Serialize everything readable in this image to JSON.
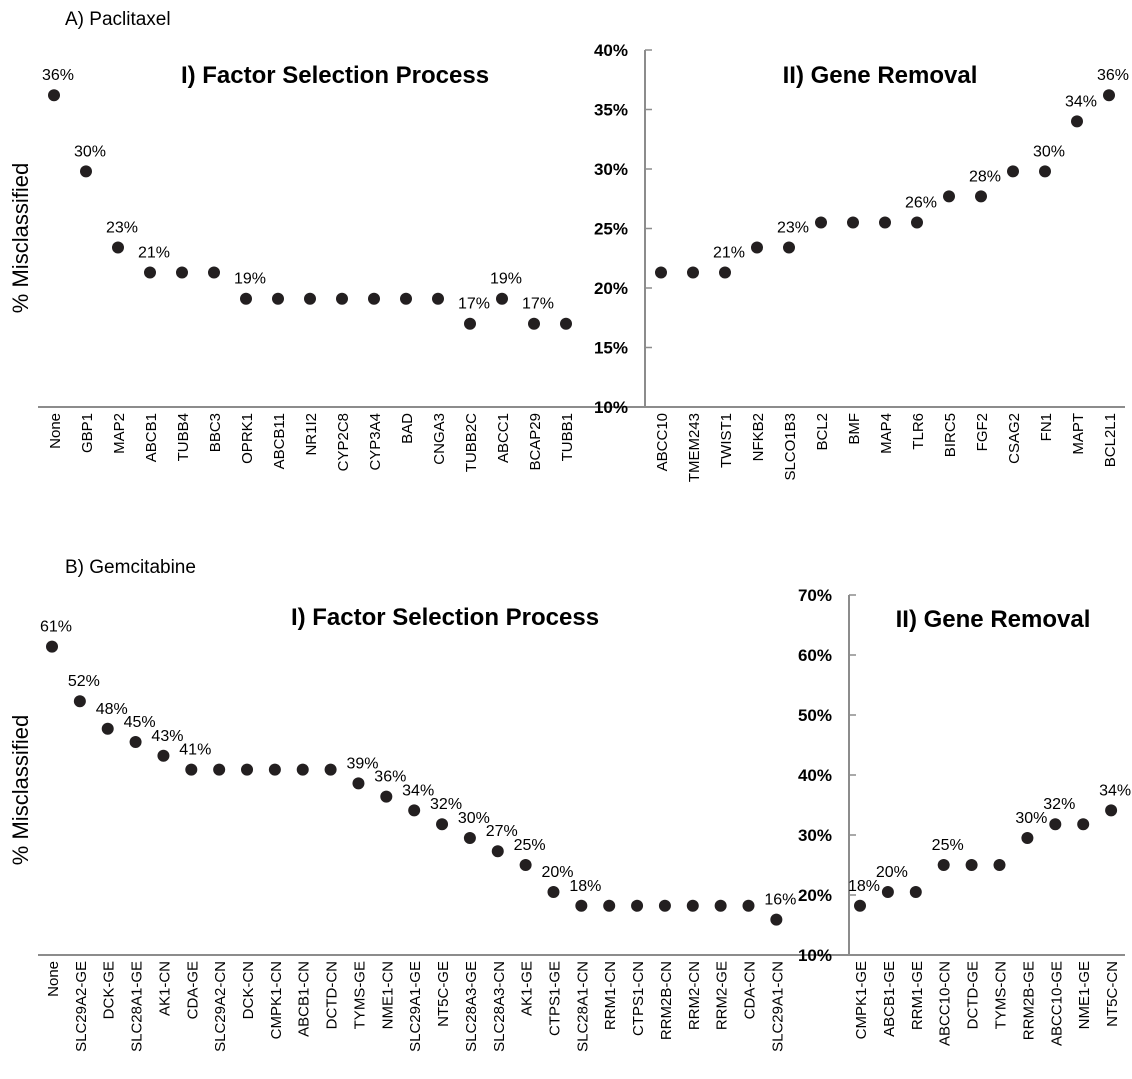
{
  "chart_data": [
    {
      "panel_title": "A) Paclitaxel",
      "type": "scatter",
      "ylabel": "% Misclassified",
      "yticks": [
        "10%",
        "15%",
        "20%",
        "25%",
        "30%",
        "35%",
        "40%"
      ],
      "ylim": [
        10,
        40
      ],
      "sections": [
        {
          "title": "I) Factor Selection Process",
          "categories": [
            "None",
            "GBP1",
            "MAP2",
            "ABCB1",
            "TUBB4",
            "BBC3",
            "OPRK1",
            "ABCB11",
            "NR1I2",
            "CYP2C8",
            "CYP3A4",
            "BAD",
            "CNGA3",
            "TUBB2C",
            "ABCC1",
            "BCAP29",
            "TUBB1"
          ],
          "values": [
            36.2,
            29.8,
            23.4,
            21.3,
            21.3,
            21.3,
            19.1,
            19.1,
            19.1,
            19.1,
            19.1,
            19.1,
            19.1,
            17.0,
            19.1,
            17.0,
            17.0
          ],
          "labels": [
            "36%",
            "30%",
            "23%",
            "21%",
            "",
            "",
            "19%",
            "",
            "",
            "",
            "",
            "",
            "",
            "17%",
            "19%",
            "17%",
            ""
          ]
        },
        {
          "title": "II) Gene Removal",
          "categories": [
            "ABCC10",
            "TMEM243",
            "TWIST1",
            "NFKB2",
            "SLCO1B3",
            "BCL2",
            "BMF",
            "MAP4",
            "TLR6",
            "BIRC5",
            "FGF2",
            "CSAG2",
            "FN1",
            "MAPT",
            "BCL2L1"
          ],
          "values": [
            21.3,
            21.3,
            21.3,
            23.4,
            23.4,
            25.5,
            25.5,
            25.5,
            25.5,
            27.7,
            27.7,
            29.8,
            29.8,
            34.0,
            36.2
          ],
          "labels": [
            "",
            "",
            "21%",
            "",
            "23%",
            "",
            "",
            "",
            "26%",
            "",
            "28%",
            "",
            "30%",
            "34%",
            "36%"
          ]
        }
      ]
    },
    {
      "panel_title": "B) Gemcitabine",
      "type": "scatter",
      "ylabel": "% Misclassified",
      "yticks": [
        "10%",
        "20%",
        "30%",
        "40%",
        "50%",
        "60%",
        "70%"
      ],
      "ylim": [
        10,
        70
      ],
      "sections": [
        {
          "title": "I) Factor Selection Process",
          "categories": [
            "None",
            "SLC29A2-GE",
            "DCK-GE",
            "SLC28A1-GE",
            "AK1-CN",
            "CDA-GE",
            "SLC29A2-CN",
            "DCK-CN",
            "CMPK1-CN",
            "ABCB1-CN",
            "DCTD-CN",
            "TYMS-GE",
            "NME1-CN",
            "SLC29A1-GE",
            "NT5C-GE",
            "SLC28A3-GE",
            "SLC28A3-CN",
            "AK1-GE",
            "CTPS1-GE",
            "SLC28A1-CN",
            "RRM1-CN",
            "CTPS1-CN",
            "RRM2B-CN",
            "RRM2-CN",
            "RRM2-GE",
            "CDA-CN",
            "SLC29A1-CN"
          ],
          "values": [
            61.4,
            52.3,
            47.7,
            45.5,
            43.2,
            40.9,
            40.9,
            40.9,
            40.9,
            40.9,
            40.9,
            38.6,
            36.4,
            34.1,
            31.8,
            29.5,
            27.3,
            25.0,
            20.5,
            18.2,
            18.2,
            18.2,
            18.2,
            18.2,
            18.2,
            18.2,
            15.9
          ],
          "labels": [
            "61%",
            "52%",
            "48%",
            "45%",
            "43%",
            "41%",
            "",
            "",
            "",
            "",
            "",
            "39%",
            "36%",
            "34%",
            "32%",
            "30%",
            "27%",
            "25%",
            "20%",
            "18%",
            "",
            "",
            "",
            "",
            "",
            "",
            "16%"
          ]
        },
        {
          "title": "II) Gene Removal",
          "categories": [
            "CMPK1-GE",
            "ABCB1-GE",
            "RRM1-GE",
            "ABCC10-CN",
            "DCTD-GE",
            "TYMS-CN",
            "RRM2B-GE",
            "ABCC10-GE",
            "NME1-GE",
            "NT5C-CN"
          ],
          "values": [
            18.2,
            20.5,
            20.5,
            25.0,
            25.0,
            25.0,
            29.5,
            31.8,
            31.8,
            34.1
          ],
          "labels": [
            "18%",
            "20%",
            "",
            "25%",
            "",
            "",
            "30%",
            "32%",
            "",
            "34%"
          ]
        }
      ]
    }
  ]
}
